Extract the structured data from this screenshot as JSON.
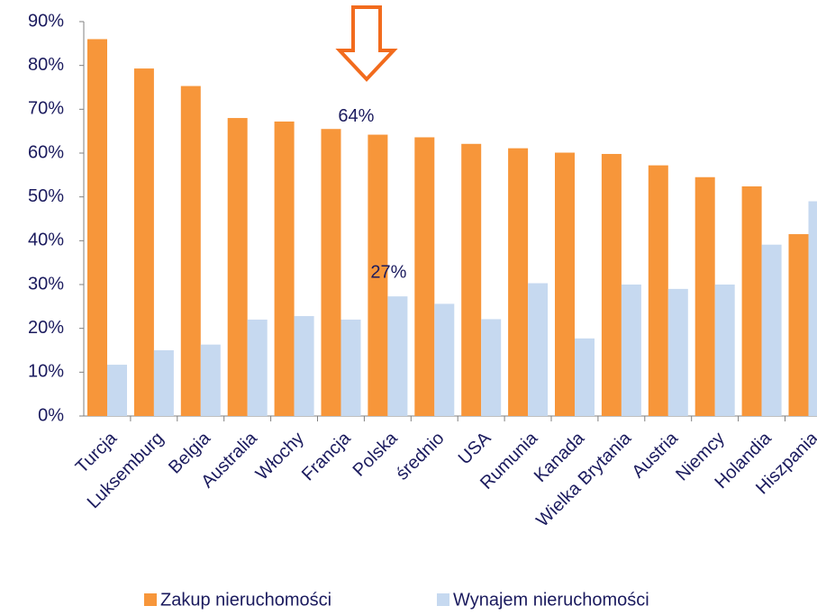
{
  "chart_data": {
    "type": "bar",
    "categories": [
      "Turcja",
      "Luksemburg",
      "Belgia",
      "Australia",
      "Włochy",
      "Francja",
      "Polska",
      "średnio",
      "USA",
      "Rumunia",
      "Kanada",
      "Wielka Brytania",
      "Austria",
      "Niemcy",
      "Holandia",
      "Hiszpania"
    ],
    "series": [
      {
        "name": "Zakup nieruchomości",
        "color": "#f7963a",
        "values": [
          86,
          79.3,
          75.3,
          68,
          67.2,
          65.5,
          64.2,
          63.6,
          62.1,
          61.1,
          60.1,
          59.8,
          57.2,
          54.5,
          52.4,
          41.5
        ],
        "value_labels": [
          null,
          null,
          null,
          null,
          null,
          null,
          "64%",
          null,
          null,
          null,
          null,
          null,
          null,
          null,
          null,
          null
        ]
      },
      {
        "name": "Wynajem nieruchomości",
        "color": "#c6d9f0",
        "values": [
          11.7,
          15,
          16.3,
          22,
          22.8,
          22,
          27.3,
          25.6,
          22.1,
          30.3,
          17.7,
          30,
          29,
          30,
          39.1,
          49
        ],
        "value_labels": [
          null,
          null,
          null,
          null,
          null,
          null,
          "27%",
          null,
          null,
          null,
          null,
          null,
          null,
          null,
          null,
          null
        ]
      }
    ],
    "ylim": [
      0,
      90
    ],
    "yticks": [
      {
        "value": 0,
        "label": "0%"
      },
      {
        "value": 10,
        "label": "10%"
      },
      {
        "value": 20,
        "label": "20%"
      },
      {
        "value": 30,
        "label": "30%"
      },
      {
        "value": 40,
        "label": "40%"
      },
      {
        "value": 50,
        "label": "50%"
      },
      {
        "value": 60,
        "label": "60%"
      },
      {
        "value": 70,
        "label": "70%"
      },
      {
        "value": 80,
        "label": "80%"
      },
      {
        "value": 90,
        "label": "90%"
      }
    ],
    "grid": false,
    "legend": "bottom"
  }
}
